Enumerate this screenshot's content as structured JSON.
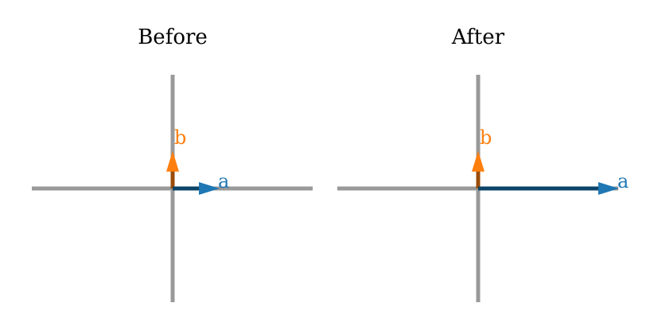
{
  "colors": {
    "axis": "#999999",
    "vector_a": "#1f77b4",
    "vector_a_shaft": "#0b4468",
    "vector_b": "#ff7f0e",
    "vector_b_shaft": "#9a4c08"
  },
  "panels": [
    {
      "title": "Before",
      "vectors": [
        {
          "label": "a",
          "x": 1,
          "y": 0
        },
        {
          "label": "b",
          "x": 0,
          "y": 0.8
        }
      ]
    },
    {
      "title": "After",
      "vectors": [
        {
          "label": "a",
          "x": 3,
          "y": 0
        },
        {
          "label": "b",
          "x": 0,
          "y": 0.8
        }
      ]
    }
  ]
}
